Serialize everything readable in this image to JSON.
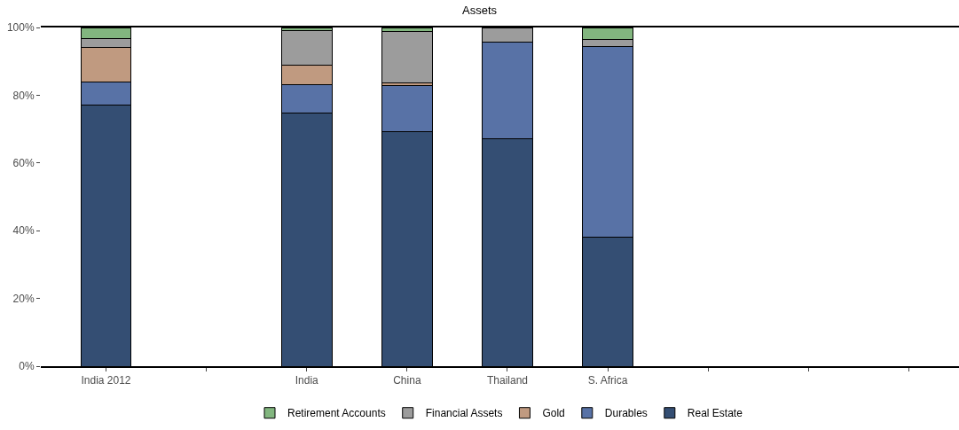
{
  "chart_data": {
    "type": "bar",
    "title": "Assets",
    "stacked": true,
    "legend": "bottom",
    "grid": false,
    "categories": [
      "India 2012",
      null,
      "India",
      "China",
      "Thailand",
      "S. Africa",
      null,
      null,
      null
    ],
    "series": [
      {
        "name": "Real Estate",
        "color": "#344e73",
        "values": [
          77.0,
          null,
          74.8,
          69.2,
          67.2,
          38.0,
          null,
          null,
          null
        ]
      },
      {
        "name": "Durables",
        "color": "#5872a6",
        "values": [
          7.0,
          null,
          8.4,
          13.7,
          28.4,
          56.3,
          null,
          null,
          null
        ]
      },
      {
        "name": "Gold",
        "color": "#c09a80",
        "values": [
          10.2,
          null,
          5.8,
          0.8,
          0,
          0,
          null,
          null,
          null
        ]
      },
      {
        "name": "Financial Assets",
        "color": "#9c9c9c",
        "values": [
          2.5,
          null,
          10.2,
          15.0,
          4.4,
          2.2,
          null,
          null,
          null
        ]
      },
      {
        "name": "Retirement Accounts",
        "color": "#82b67f",
        "values": [
          3.3,
          null,
          0.8,
          1.3,
          0,
          3.5,
          null,
          null,
          null
        ]
      }
    ],
    "ylim": [
      0,
      100
    ],
    "yticks": [
      {
        "value": 0,
        "label": "0%"
      },
      {
        "value": 20,
        "label": "20%"
      },
      {
        "value": 40,
        "label": "40%"
      },
      {
        "value": 60,
        "label": "60%"
      },
      {
        "value": 80,
        "label": "80%"
      },
      {
        "value": 100,
        "label": "100%"
      }
    ]
  }
}
